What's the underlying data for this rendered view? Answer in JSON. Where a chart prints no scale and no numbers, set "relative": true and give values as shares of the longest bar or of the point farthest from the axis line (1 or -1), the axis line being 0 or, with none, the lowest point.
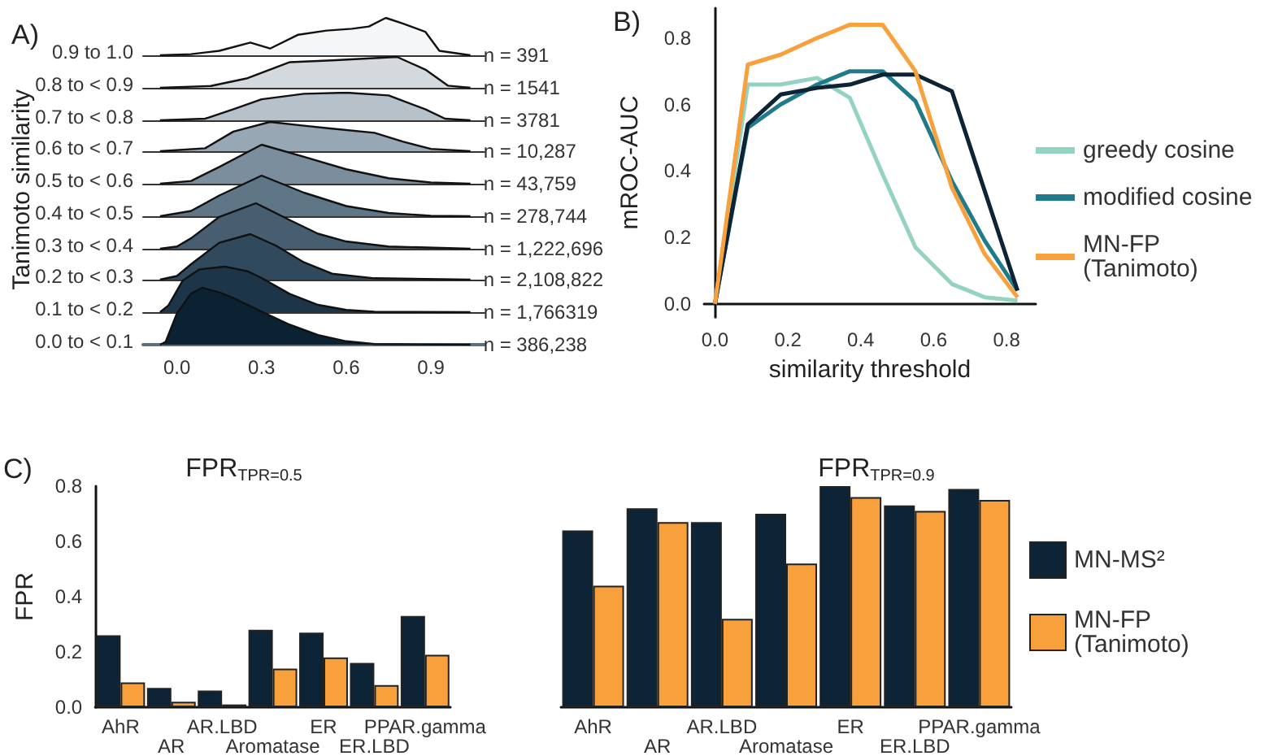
{
  "chart_data": [
    {
      "type": "area",
      "title": "A)",
      "ylabel": "Tanimoto similarity",
      "relative": true,
      "marker": "none",
      "tick_labels": false,
      "xlim": [
        -0.12,
        1.09
      ],
      "annotations": [
        "n = 391"
      ],
      "series": [
        {
          "name": "0.9 to 1.0",
          "color": "#f4f6f7",
          "x": [
            -0.06,
            0.05,
            0.15,
            0.26,
            0.33,
            0.43,
            0.53,
            0.62,
            0.68,
            0.74,
            0.8,
            0.88,
            0.93,
            1.04
          ],
          "values": [
            0,
            0.03,
            0.12,
            0.34,
            0.18,
            0.55,
            0.66,
            0.71,
            0.77,
            1,
            0.85,
            0.63,
            0.12,
            0
          ]
        }
      ]
    },
    {
      "type": "area",
      "relative": true,
      "marker": "none",
      "tick_labels": false,
      "xlim": [
        -0.12,
        1.09
      ],
      "annotations": [
        "n = 1541"
      ],
      "series": [
        {
          "name": "0.8 to < 0.9",
          "color": "#d3d9dd",
          "x": [
            -0.06,
            0.12,
            0.25,
            0.4,
            0.55,
            0.7,
            0.78,
            0.88,
            0.96,
            1.04
          ],
          "values": [
            0,
            0.06,
            0.31,
            0.83,
            0.89,
            0.96,
            1,
            0.59,
            0.07,
            0
          ]
        }
      ]
    },
    {
      "type": "area",
      "relative": true,
      "marker": "none",
      "tick_labels": false,
      "xlim": [
        -0.12,
        1.09
      ],
      "annotations": [
        "n = 3781"
      ],
      "series": [
        {
          "name": "0.7 to < 0.8",
          "color": "#b7c1c9",
          "x": [
            -0.06,
            0.1,
            0.2,
            0.3,
            0.45,
            0.6,
            0.75,
            0.88,
            0.95,
            1.04
          ],
          "values": [
            0,
            0.06,
            0.4,
            0.76,
            0.96,
            1,
            0.9,
            0.4,
            0.06,
            0
          ]
        }
      ]
    },
    {
      "type": "area",
      "relative": true,
      "marker": "none",
      "tick_labels": false,
      "xlim": [
        -0.12,
        1.09
      ],
      "annotations": [
        "n = 10,287"
      ],
      "series": [
        {
          "name": "0.6 to < 0.7",
          "color": "#97a7b3",
          "x": [
            -0.06,
            0.1,
            0.2,
            0.33,
            0.45,
            0.55,
            0.7,
            0.8,
            0.9,
            1.04
          ],
          "values": [
            0,
            0.1,
            0.67,
            1,
            0.87,
            0.77,
            0.63,
            0.33,
            0.08,
            0
          ]
        }
      ]
    },
    {
      "type": "area",
      "relative": true,
      "marker": "none",
      "tick_labels": false,
      "xlim": [
        -0.12,
        1.09
      ],
      "annotations": [
        "n = 43,759"
      ],
      "series": [
        {
          "name": "0.5 to < 0.6",
          "color": "#7a8e9d",
          "x": [
            -0.06,
            0.05,
            0.15,
            0.3,
            0.45,
            0.6,
            0.75,
            0.9,
            1.04
          ],
          "values": [
            0,
            0.07,
            0.43,
            1,
            0.69,
            0.37,
            0.14,
            0.03,
            0
          ]
        }
      ]
    },
    {
      "type": "area",
      "relative": true,
      "marker": "none",
      "tick_labels": false,
      "xlim": [
        -0.12,
        1.09
      ],
      "annotations": [
        "n = 278,744"
      ],
      "series": [
        {
          "name": "0.4 to < 0.5",
          "color": "#5f7686",
          "x": [
            -0.06,
            0.05,
            0.15,
            0.3,
            0.45,
            0.6,
            0.75,
            0.9,
            1.04
          ],
          "values": [
            0,
            0.13,
            0.51,
            1,
            0.58,
            0.25,
            0.08,
            0.01,
            0
          ]
        }
      ]
    },
    {
      "type": "area",
      "relative": true,
      "marker": "none",
      "tick_labels": false,
      "xlim": [
        -0.12,
        1.09
      ],
      "annotations": [
        "n = 1,222,696"
      ],
      "series": [
        {
          "name": "0.3 to < 0.4",
          "color": "#465e70",
          "x": [
            -0.06,
            0.0,
            0.05,
            0.15,
            0.28,
            0.4,
            0.5,
            0.6,
            0.75,
            1.04
          ],
          "values": [
            0,
            0.05,
            0.23,
            0.7,
            1,
            0.63,
            0.33,
            0.16,
            0.05,
            0
          ]
        }
      ]
    },
    {
      "type": "area",
      "relative": true,
      "marker": "none",
      "tick_labels": false,
      "xlim": [
        -0.12,
        1.09
      ],
      "annotations": [
        "n = 2,108,822"
      ],
      "series": [
        {
          "name": "0.2 to < 0.3",
          "color": "#30495c",
          "x": [
            -0.06,
            0.0,
            0.05,
            0.15,
            0.26,
            0.35,
            0.45,
            0.55,
            0.7,
            1.04
          ],
          "values": [
            0,
            0.08,
            0.34,
            0.81,
            1,
            0.75,
            0.38,
            0.13,
            0.03,
            0
          ]
        }
      ]
    },
    {
      "type": "area",
      "relative": true,
      "marker": "none",
      "tick_labels": false,
      "xlim": [
        -0.12,
        1.09
      ],
      "annotations": [
        "n = 1,766319"
      ],
      "series": [
        {
          "name": "0.1 to < 0.2",
          "color": "#1c3549",
          "x": [
            -0.06,
            -0.03,
            0.02,
            0.08,
            0.17,
            0.25,
            0.3,
            0.4,
            0.5,
            0.6,
            0.7,
            1.04
          ],
          "values": [
            0,
            0.15,
            0.69,
            0.94,
            1,
            0.9,
            0.75,
            0.4,
            0.16,
            0.05,
            0.01,
            0
          ]
        }
      ]
    },
    {
      "type": "area",
      "relative": true,
      "marker": "none",
      "tick_labels": "x",
      "xlim": [
        -0.12,
        1.09
      ],
      "xticks": [
        {
          "value": 0,
          "label": "0.0"
        },
        {
          "value": 0.3,
          "label": "0.3"
        },
        {
          "value": 0.6,
          "label": "0.6"
        },
        {
          "value": 0.9,
          "label": "0.9"
        }
      ],
      "annotations": [
        "n = 386,238"
      ],
      "series": [
        {
          "name": "0.0 to < 0.1",
          "color": "#0b2233",
          "x": [
            -0.06,
            -0.04,
            0.0,
            0.05,
            0.09,
            0.15,
            0.2,
            0.3,
            0.4,
            0.5,
            0.6,
            0.7,
            1.04
          ],
          "values": [
            0,
            0.05,
            0.55,
            0.9,
            1.0,
            0.92,
            0.82,
            0.58,
            0.35,
            0.17,
            0.06,
            0.01,
            0
          ]
        }
      ]
    },
    {
      "type": "line",
      "title": "B)",
      "xlabel": "similarity threshold",
      "ylabel": "mROC-AUC",
      "marker": "none",
      "legend": "right",
      "xlim": [
        -0.03,
        0.88
      ],
      "ylim": [
        -0.04,
        0.89
      ],
      "xticks": [
        {
          "value": 0,
          "label": "0.0"
        },
        {
          "value": 0.2,
          "label": "0.2"
        },
        {
          "value": 0.4,
          "label": "0.4"
        },
        {
          "value": 0.6,
          "label": "0.6"
        },
        {
          "value": 0.8,
          "label": "0.8"
        }
      ],
      "yticks": [
        {
          "value": 0,
          "label": "0.0"
        },
        {
          "value": 0.2,
          "label": "0.2"
        },
        {
          "value": 0.4,
          "label": "0.4"
        },
        {
          "value": 0.6,
          "label": "0.6"
        },
        {
          "value": 0.8,
          "label": "0.8"
        }
      ],
      "x": [
        0,
        0.09,
        0.18,
        0.28,
        0.37,
        0.46,
        0.55,
        0.65,
        0.74,
        0.83
      ],
      "series": [
        {
          "name": "greedy cosine",
          "color": "#94d2c2",
          "values": [
            0,
            0.66,
            0.66,
            0.68,
            0.62,
            0.39,
            0.17,
            0.06,
            0.02,
            0.01
          ]
        },
        {
          "name": "modified cosine",
          "color": "#1f7b8a",
          "values": [
            0,
            0.53,
            0.6,
            0.66,
            0.7,
            0.7,
            0.61,
            0.37,
            0.19,
            0.04
          ]
        },
        {
          "color": "#0d2436",
          "values": [
            0,
            0.54,
            0.63,
            0.65,
            0.66,
            0.69,
            0.69,
            0.64,
            0.34,
            0.04
          ]
        },
        {
          "name": "MN-FP\n(Tanimoto)",
          "color": "#f7a03c",
          "values": [
            0,
            0.72,
            0.75,
            0.8,
            0.84,
            0.84,
            0.7,
            0.35,
            0.15,
            0.02
          ]
        }
      ]
    },
    {
      "type": "bar",
      "title": "FPR$_{TPR=0.5}$",
      "ylabel": "FPR",
      "annotations": [
        "C)"
      ],
      "ylim": [
        0,
        0.8
      ],
      "yticks": [
        {
          "value": 0,
          "label": "0.0"
        },
        {
          "value": 0.2,
          "label": "0.2"
        },
        {
          "value": 0.4,
          "label": "0.4"
        },
        {
          "value": 0.6,
          "label": "0.6"
        },
        {
          "value": 0.8,
          "label": "0.8"
        }
      ],
      "categories": [
        "AhR",
        "AR",
        "AR.LBD",
        "Aromatase",
        "ER",
        "ER.LBD",
        "PPAR.gamma"
      ],
      "series": [
        {
          "color": "#0d2436",
          "values": [
            0.26,
            0.07,
            0.06,
            0.28,
            0.27,
            0.16,
            0.33
          ]
        },
        {
          "color": "#f7a03c",
          "values": [
            0.09,
            0.02,
            0.01,
            0.14,
            0.18,
            0.08,
            0.19
          ]
        }
      ]
    },
    {
      "type": "bar",
      "title": "FPR$_{TPR=0.9}$",
      "legend": "right",
      "tick_labels": "x",
      "ylim": [
        0,
        0.8
      ],
      "categories": [
        "AhR",
        "AR",
        "AR.LBD",
        "Aromatase",
        "ER",
        "ER.LBD",
        "PPAR.gamma"
      ],
      "series": [
        {
          "name": "MN-MS²",
          "color": "#0d2436",
          "values": [
            0.64,
            0.72,
            0.67,
            0.7,
            0.8,
            0.73,
            0.79
          ]
        },
        {
          "name": "MN-FP\n(Tanimoto)",
          "color": "#f7a03c",
          "values": [
            0.44,
            0.67,
            0.32,
            0.52,
            0.76,
            0.71,
            0.75
          ]
        }
      ]
    }
  ]
}
